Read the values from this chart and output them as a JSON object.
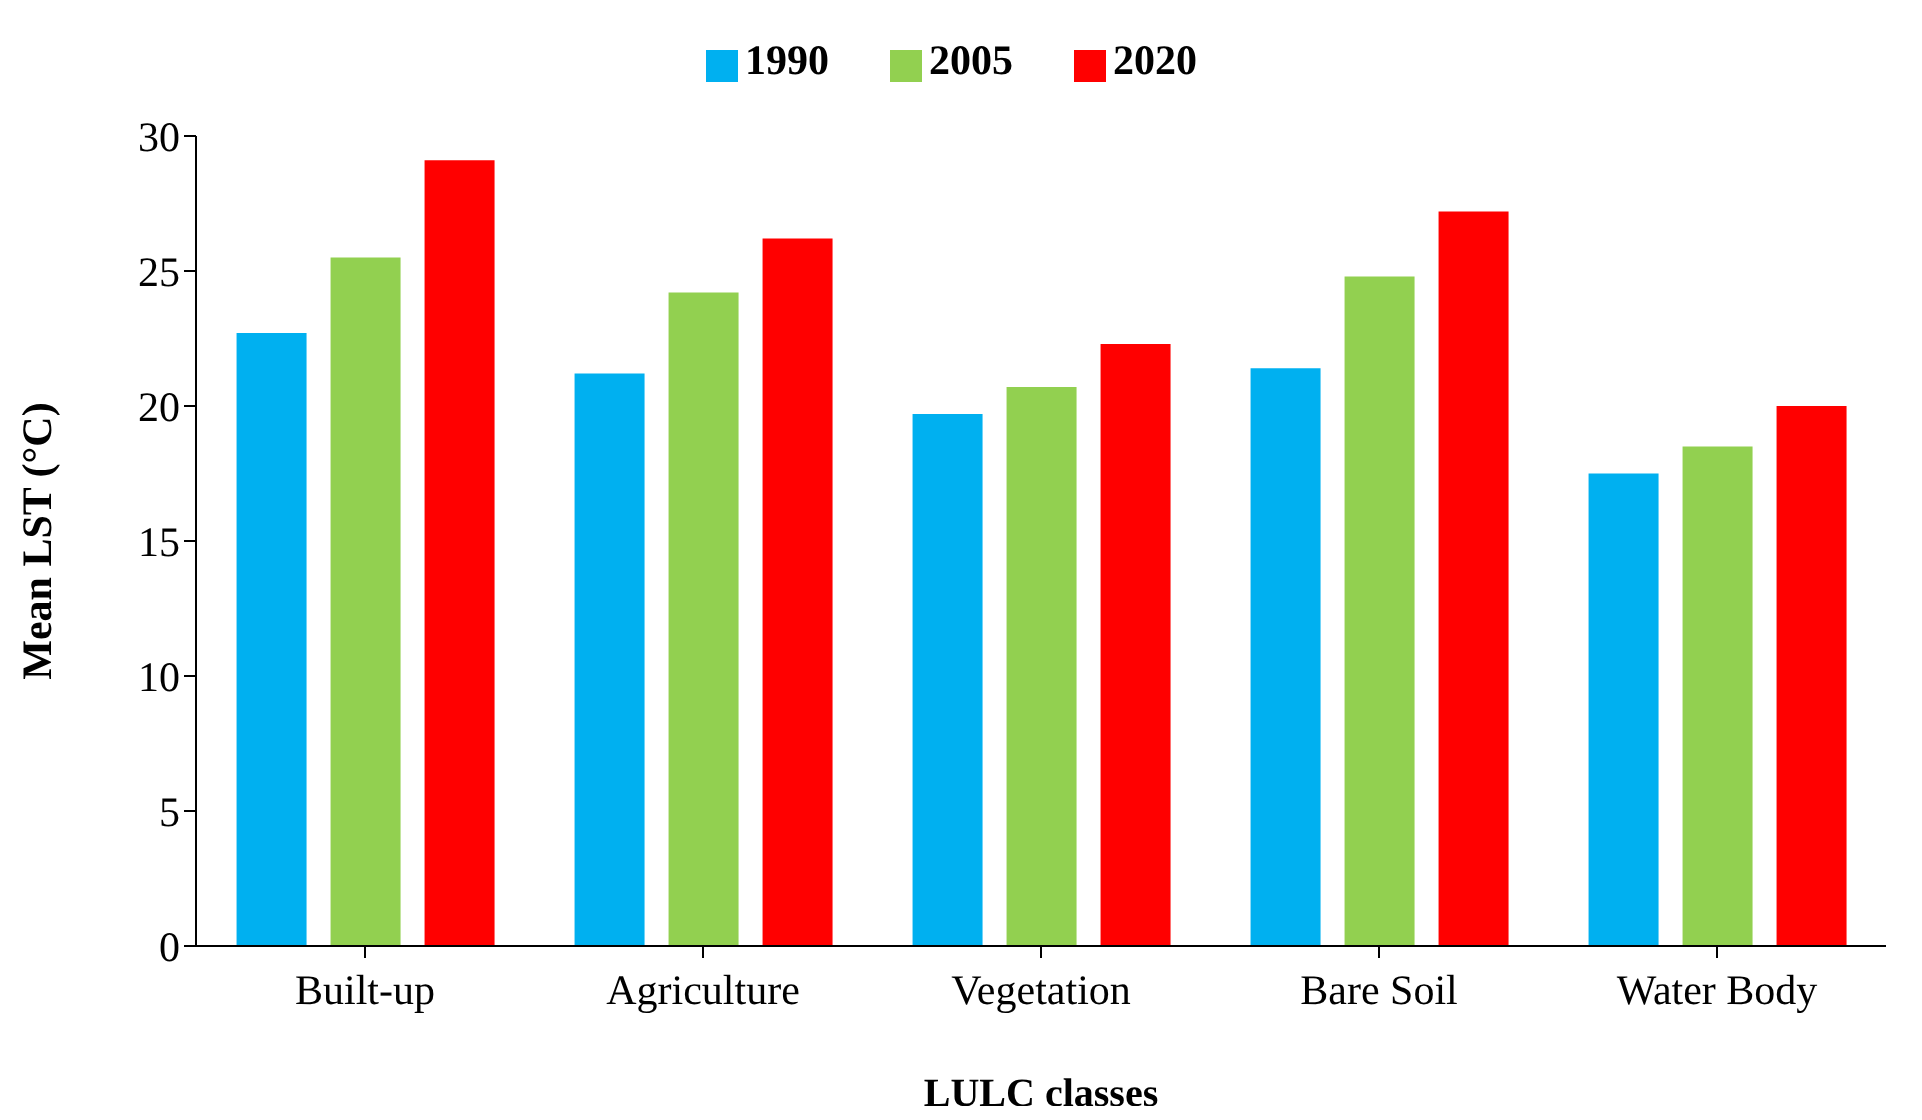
{
  "chart_data": {
    "type": "bar",
    "xlabel": "LULC classes",
    "ylabel": "Mean LST (°C)",
    "categories": [
      "Built-up",
      "Agriculture",
      "Vegetation",
      "Bare Soil",
      "Water Body"
    ],
    "series": [
      {
        "name": "1990",
        "color": "#00b0f0",
        "values": [
          22.7,
          21.2,
          19.7,
          21.4,
          17.5
        ]
      },
      {
        "name": "2005",
        "color": "#92d050",
        "values": [
          25.5,
          24.2,
          20.7,
          24.8,
          18.5
        ]
      },
      {
        "name": "2020",
        "color": "#ff0000",
        "values": [
          29.1,
          26.2,
          22.3,
          27.2,
          20.0
        ]
      }
    ],
    "ylim": [
      0,
      30
    ],
    "yticks": [
      0,
      5,
      10,
      15,
      20,
      25,
      30
    ],
    "grid": false,
    "legend": "top"
  }
}
